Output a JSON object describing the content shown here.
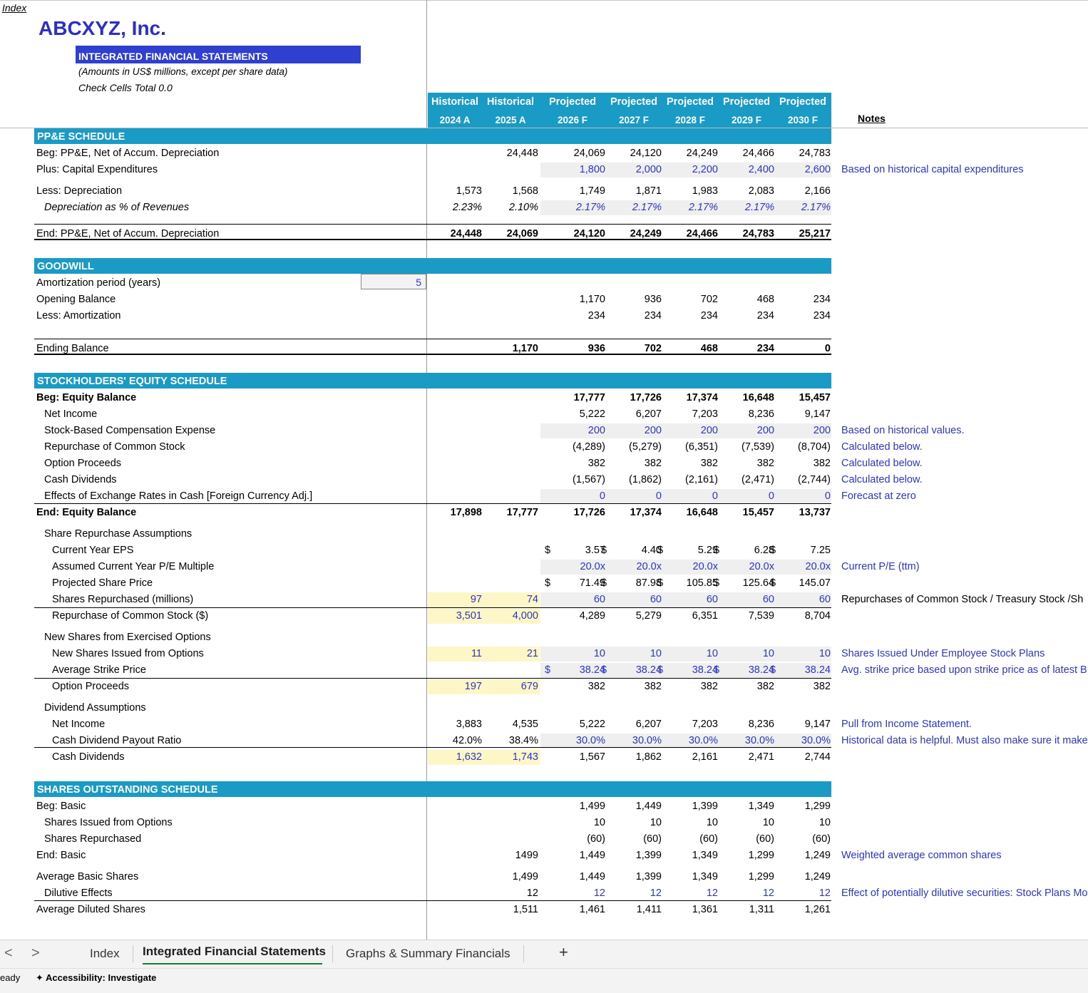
{
  "index_link": "Index",
  "company": "ABCXYZ, Inc.",
  "statement_title": "INTEGRATED FINANCIAL STATEMENTS",
  "subtitle": "(Amounts in US$ millions, except per share data)",
  "check_cells": "Check Cells Total 0.0",
  "columns": [
    {
      "type": "Historical",
      "year": "2024 A"
    },
    {
      "type": "Historical",
      "year": "2025 A"
    },
    {
      "type": "Projected",
      "year": "2026 F"
    },
    {
      "type": "Projected",
      "year": "2027 F"
    },
    {
      "type": "Projected",
      "year": "2028 F"
    },
    {
      "type": "Projected",
      "year": "2029 F"
    },
    {
      "type": "Projected",
      "year": "2030 F"
    }
  ],
  "notes_header": "Notes",
  "sections": {
    "ppe": "PP&E SCHEDULE",
    "goodwill": "GOODWILL",
    "equity": "STOCKHOLDERS' EQUITY SCHEDULE",
    "shares": "SHARES OUTSTANDING SCHEDULE"
  },
  "amortization_period_label": "Amortization period (years)",
  "amortization_period_value": "5",
  "rows": {
    "ppe_beg": {
      "label": "Beg: PP&E, Net of Accum. Depreciation",
      "v": [
        "",
        "24,448",
        "24,069",
        "24,120",
        "24,249",
        "24,466",
        "24,783"
      ]
    },
    "ppe_capex": {
      "label": "Plus: Capital Expenditures",
      "v": [
        "",
        "",
        "1,800",
        "2,000",
        "2,200",
        "2,400",
        "2,600"
      ],
      "note": "Based on historical capital expenditures"
    },
    "ppe_dep": {
      "label": "Less: Depreciation",
      "v": [
        "1,573",
        "1,568",
        "1,749",
        "1,871",
        "1,983",
        "2,083",
        "2,166"
      ]
    },
    "ppe_dep_pct": {
      "label": "Depreciation as % of Revenues",
      "v": [
        "2.23%",
        "2.10%",
        "2.17%",
        "2.17%",
        "2.17%",
        "2.17%",
        "2.17%"
      ]
    },
    "ppe_end": {
      "label": "End: PP&E, Net of Accum. Depreciation",
      "v": [
        "24,448",
        "24,069",
        "24,120",
        "24,249",
        "24,466",
        "24,783",
        "25,217"
      ]
    },
    "gw_open": {
      "label": "Opening Balance",
      "v": [
        "",
        "",
        "1,170",
        "936",
        "702",
        "468",
        "234"
      ]
    },
    "gw_amort": {
      "label": "Less: Amortization",
      "v": [
        "",
        "",
        "234",
        "234",
        "234",
        "234",
        "234"
      ]
    },
    "gw_end": {
      "label": "Ending Balance",
      "v": [
        "",
        "1,170",
        "936",
        "702",
        "468",
        "234",
        "0"
      ]
    },
    "eq_beg": {
      "label": "Beg: Equity Balance",
      "v": [
        "",
        "",
        "17,777",
        "17,726",
        "17,374",
        "16,648",
        "15,457"
      ]
    },
    "eq_ni": {
      "label": "Net Income",
      "v": [
        "",
        "",
        "5,222",
        "6,207",
        "7,203",
        "8,236",
        "9,147"
      ]
    },
    "eq_sbc": {
      "label": "Stock-Based Compensation Expense",
      "v": [
        "",
        "",
        "200",
        "200",
        "200",
        "200",
        "200"
      ],
      "note": "Based on historical values."
    },
    "eq_rep": {
      "label": "Repurchase of Common Stock",
      "v": [
        "",
        "",
        "(4,289)",
        "(5,279)",
        "(6,351)",
        "(7,539)",
        "(8,704)"
      ],
      "note": "Calculated below."
    },
    "eq_opt": {
      "label": "Option Proceeds",
      "v": [
        "",
        "",
        "382",
        "382",
        "382",
        "382",
        "382"
      ],
      "note": "Calculated below."
    },
    "eq_div": {
      "label": "Cash Dividends",
      "v": [
        "",
        "",
        "(1,567)",
        "(1,862)",
        "(2,161)",
        "(2,471)",
        "(2,744)"
      ],
      "note": "Calculated below."
    },
    "eq_fx": {
      "label": "Effects of Exchange Rates in Cash [Foreign Currency Adj.]",
      "v": [
        "",
        "",
        "0",
        "0",
        "0",
        "0",
        "0"
      ],
      "note": "Forecast at zero"
    },
    "eq_end": {
      "label": "End: Equity Balance",
      "v": [
        "17,898",
        "17,777",
        "17,726",
        "17,374",
        "16,648",
        "15,457",
        "13,737"
      ]
    },
    "sra_title": {
      "label": "Share Repurchase Assumptions"
    },
    "sra_eps": {
      "label": "Current Year EPS",
      "v": [
        "",
        "",
        "3.57",
        "4.40",
        "5.29",
        "6.28",
        "7.25"
      ]
    },
    "sra_pe": {
      "label": "Assumed Current Year P/E Multiple",
      "v": [
        "",
        "",
        "20.0x",
        "20.0x",
        "20.0x",
        "20.0x",
        "20.0x"
      ],
      "note": "Current P/E (ttm)"
    },
    "sra_price": {
      "label": "Projected Share Price",
      "v": [
        "",
        "",
        "71.49",
        "87.98",
        "105.85",
        "125.64",
        "145.07"
      ]
    },
    "sra_shares": {
      "label": "Shares Repurchased (millions)",
      "v": [
        "97",
        "74",
        "60",
        "60",
        "60",
        "60",
        "60"
      ],
      "note": "Repurchases of Common Stock / Treasury Stock /Sh"
    },
    "sra_dollars": {
      "label": "Repurchase of Common Stock ($)",
      "v": [
        "3,501",
        "4,000",
        "4,289",
        "5,279",
        "6,351",
        "7,539",
        "8,704"
      ]
    },
    "nso_title": {
      "label": "New Shares from Exercised Options"
    },
    "nso_new": {
      "label": "New Shares Issued from Options",
      "v": [
        "11",
        "21",
        "10",
        "10",
        "10",
        "10",
        "10"
      ],
      "note": "Shares Issued Under Employee Stock Plans"
    },
    "nso_strike": {
      "label": "Average Strike Price",
      "v": [
        "",
        "",
        "38.24",
        "38.24",
        "38.24",
        "38.24",
        "38.24"
      ],
      "note": "Avg. strike price based upon strike price as of latest B"
    },
    "nso_proceeds": {
      "label": "Option Proceeds",
      "v": [
        "197",
        "679",
        "382",
        "382",
        "382",
        "382",
        "382"
      ]
    },
    "div_title": {
      "label": "Dividend Assumptions"
    },
    "div_ni": {
      "label": "Net Income",
      "v": [
        "3,883",
        "4,535",
        "5,222",
        "6,207",
        "7,203",
        "8,236",
        "9,147"
      ],
      "note": "Pull from Income Statement."
    },
    "div_ratio": {
      "label": "Cash Dividend Payout Ratio",
      "v": [
        "42.0%",
        "38.4%",
        "30.0%",
        "30.0%",
        "30.0%",
        "30.0%",
        "30.0%"
      ],
      "note": "Historical data is helpful. Must also make sure it make"
    },
    "div_cash": {
      "label": "Cash Dividends",
      "v": [
        "1,632",
        "1,743",
        "1,567",
        "1,862",
        "2,161",
        "2,471",
        "2,744"
      ]
    },
    "so_beg": {
      "label": "Beg: Basic",
      "v": [
        "",
        "",
        "1,499",
        "1,449",
        "1,399",
        "1,349",
        "1,299"
      ]
    },
    "so_opt": {
      "label": "Shares Issued from Options",
      "v": [
        "",
        "",
        "10",
        "10",
        "10",
        "10",
        "10"
      ]
    },
    "so_rep": {
      "label": "Shares Repurchased",
      "v": [
        "",
        "",
        "(60)",
        "(60)",
        "(60)",
        "(60)",
        "(60)"
      ]
    },
    "so_end": {
      "label": "End: Basic",
      "v": [
        "",
        "1499",
        "1,449",
        "1,399",
        "1,349",
        "1,299",
        "1,249"
      ],
      "note": "Weighted average common shares"
    },
    "so_avg": {
      "label": "Average Basic Shares",
      "v": [
        "",
        "1,499",
        "1,449",
        "1,399",
        "1,349",
        "1,299",
        "1,249"
      ]
    },
    "so_dil": {
      "label": "Dilutive Effects",
      "v": [
        "",
        "12",
        "12",
        "12",
        "12",
        "12",
        "12"
      ],
      "note": "Effect of potentially dilutive securities: Stock Plans Mo"
    },
    "so_avgdil": {
      "label": "Average Diluted Shares",
      "v": [
        "",
        "1,511",
        "1,461",
        "1,411",
        "1,361",
        "1,311",
        "1,261"
      ]
    }
  },
  "currency_symbol": "$",
  "tabs": {
    "prev_icon": "<",
    "next_icon": ">",
    "index": "Index",
    "active": "Integrated Financial Statements",
    "graphs": "Graphs & Summary Financials",
    "add": "+"
  },
  "status": {
    "ready": "eady",
    "accessibility": "Accessibility: Investigate"
  },
  "colors": {
    "header_fill": "#1a9bc6",
    "input_blue": "#2d36c9",
    "title_box": "#2f3fd0",
    "highlight_yellow": "#fdf6c7"
  }
}
